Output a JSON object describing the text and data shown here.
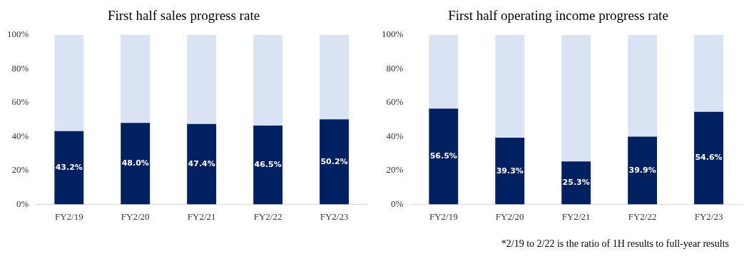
{
  "chart_data": [
    {
      "type": "bar",
      "title": "First half sales progress rate",
      "categories": [
        "FY2/19",
        "FY2/20",
        "FY2/21",
        "FY2/22",
        "FY2/23"
      ],
      "stacked": true,
      "legend": false,
      "grid": false,
      "ylim": [
        0,
        100
      ],
      "yticks": [
        {
          "value": 0,
          "label": "0%"
        },
        {
          "value": 20,
          "label": "20%"
        },
        {
          "value": 40,
          "label": "40%"
        },
        {
          "value": 60,
          "label": "60%"
        },
        {
          "value": 80,
          "label": "80%"
        },
        {
          "value": 100,
          "label": "100%"
        }
      ],
      "series": [
        {
          "color": "#002060",
          "values": [
            43.2,
            48.0,
            47.4,
            46.5,
            50.2
          ],
          "value_labels": [
            "43.2%",
            "48.0%",
            "47.4%",
            "46.5%",
            "50.2%"
          ]
        },
        {
          "color": "#dae3f3",
          "values": [
            56.8,
            52.0,
            52.6,
            53.5,
            49.8
          ]
        }
      ]
    },
    {
      "type": "bar",
      "title": "First half operating income progress rate",
      "categories": [
        "FY2/19",
        "FY2/20",
        "FY2/21",
        "FY2/22",
        "FY2/23"
      ],
      "stacked": true,
      "legend": false,
      "grid": false,
      "ylim": [
        0,
        100
      ],
      "yticks": [
        {
          "value": 0,
          "label": "0%"
        },
        {
          "value": 20,
          "label": "20%"
        },
        {
          "value": 40,
          "label": "40%"
        },
        {
          "value": 60,
          "label": "60%"
        },
        {
          "value": 80,
          "label": "80%"
        },
        {
          "value": 100,
          "label": "100%"
        }
      ],
      "series": [
        {
          "color": "#002060",
          "values": [
            56.5,
            39.3,
            25.3,
            39.9,
            54.6
          ],
          "value_labels": [
            "56.5%",
            "39.3%",
            "25.3%",
            "39.9%",
            "54.6%"
          ]
        },
        {
          "color": "#dae3f3",
          "values": [
            43.5,
            60.7,
            74.7,
            60.1,
            45.4
          ]
        }
      ],
      "annotations": [
        "*2/19 to 2/22 is the ratio of 1H results to full-year results"
      ]
    }
  ]
}
